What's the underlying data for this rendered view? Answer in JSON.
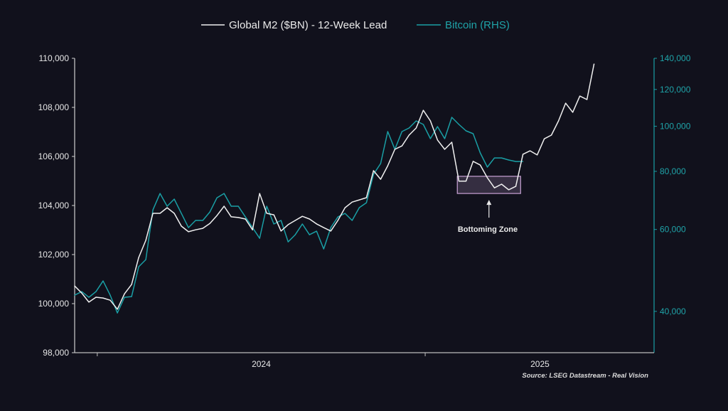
{
  "chart_data": {
    "type": "line",
    "legend": {
      "placement": "top-center",
      "entries": [
        "Global M2 ($BN) - 12-Week Lead",
        "Bitcoin (RHS)"
      ]
    },
    "x_start": 2023.931,
    "x_step": 0.0217,
    "xlim": [
      2023.931,
      2025.698
    ],
    "x_ticks": [
      2024,
      2025
    ],
    "x_tick_labels": [
      {
        "label": "2024",
        "at": 2024.5
      },
      {
        "label": "2025",
        "at": 2025.35
      }
    ],
    "left_axis": {
      "ylim": [
        98000,
        110000
      ],
      "ticks": [
        98000,
        100000,
        102000,
        104000,
        106000,
        108000,
        110000
      ],
      "tick_labels": [
        "98,000",
        "100,000",
        "102,000",
        "104,000",
        "106,000",
        "108,000",
        "110,000"
      ]
    },
    "right_axis": {
      "scale": "log",
      "ylim": [
        32600,
        140000
      ],
      "ticks": [
        40000,
        60000,
        80000,
        100000,
        120000,
        140000
      ],
      "tick_labels": [
        "40,000",
        "60,000",
        "80,000",
        "100,000",
        "120,000",
        "140,000"
      ]
    },
    "series": [
      {
        "name": "Global M2 ($BN) - 12-Week Lead",
        "axis": "left",
        "color": "#f0f0f0",
        "values": [
          100720,
          100430,
          100060,
          100260,
          100230,
          100140,
          99770,
          100400,
          100780,
          101880,
          102580,
          103680,
          103680,
          103910,
          103680,
          103160,
          102930,
          103010,
          103070,
          103270,
          103590,
          103970,
          103540,
          103510,
          103450,
          103010,
          104490,
          103680,
          103620,
          102960,
          103220,
          103390,
          103560,
          103450,
          103250,
          103100,
          102960,
          103390,
          103910,
          104140,
          104230,
          104320,
          105420,
          105070,
          105620,
          106290,
          106430,
          106870,
          107160,
          107880,
          107450,
          106670,
          106290,
          106580,
          104990,
          104990,
          105800,
          105650,
          105130,
          104720,
          104870,
          104640,
          104780,
          106090,
          106230,
          106060,
          106720,
          106870,
          107450,
          108170,
          107800,
          108460,
          108320,
          109770
        ]
      },
      {
        "name": "Bitcoin (RHS)",
        "axis": "right",
        "color": "#1a9fa5",
        "values": [
          43340,
          44110,
          42890,
          44110,
          46510,
          43340,
          39690,
          42890,
          43040,
          49900,
          51680,
          66130,
          71710,
          67310,
          69720,
          64980,
          60560,
          62740,
          62740,
          65430,
          70210,
          71710,
          67310,
          67310,
          63840,
          60560,
          57440,
          67310,
          61640,
          62740,
          56430,
          58460,
          61640,
          58460,
          59500,
          54490,
          60560,
          63840,
          64980,
          62740,
          66840,
          68500,
          78860,
          83150,
          97410,
          89210,
          97410,
          99150,
          102690,
          100900,
          94040,
          99850,
          94040,
          104520,
          100900,
          97760,
          96390,
          87650,
          81690,
          85510,
          85510,
          84620,
          84010,
          84010
        ]
      }
    ],
    "annotations": [
      {
        "type": "box",
        "label": "Bottoming Zone",
        "x_range": [
          2025.098,
          2025.291
        ],
        "y_range": [
          104490,
          105190
        ],
        "color": "#c9a3d6"
      }
    ],
    "source": "Source: LSEG Datastream - Real Vision",
    "grid": false
  }
}
